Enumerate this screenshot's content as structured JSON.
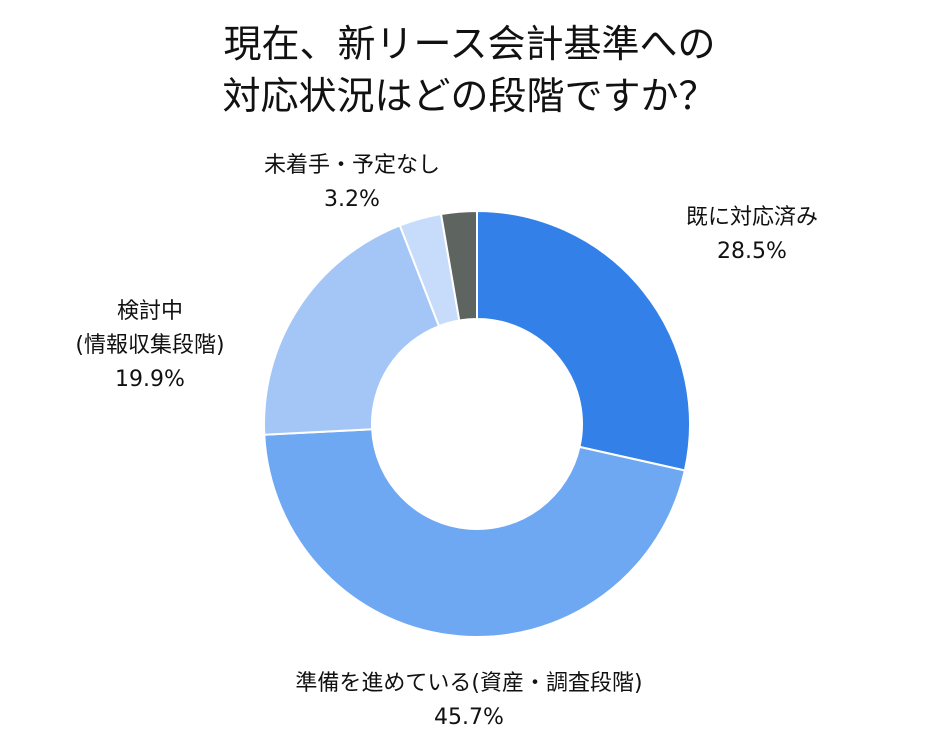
{
  "chart_data": {
    "type": "pie",
    "variant": "donut",
    "title": [
      "現在、新リース会計基準への",
      "対応状況はどの段階ですか？"
    ],
    "slices": [
      {
        "label": [
          "既に対応済み"
        ],
        "value_label": "28.5%",
        "value": 28.5,
        "color": "#3381e8"
      },
      {
        "label": [
          "準備を進めている(資産・調査段階)"
        ],
        "value_label": "45.7%",
        "value": 45.7,
        "color": "#6fa8f2"
      },
      {
        "label": [
          "検討中",
          "(情報収集段階)"
        ],
        "value_label": "19.9%",
        "value": 19.9,
        "color": "#a3c6f7"
      },
      {
        "label": [
          "未着手・予定なし"
        ],
        "value_label": "3.2%",
        "value": 3.2,
        "color": "#c7dcfa"
      },
      {
        "label": [],
        "value_label": "",
        "value": 2.7,
        "color": "#5e6560"
      }
    ],
    "start_angle": "12 o'clock",
    "direction": "clockwise",
    "legend": "none"
  }
}
